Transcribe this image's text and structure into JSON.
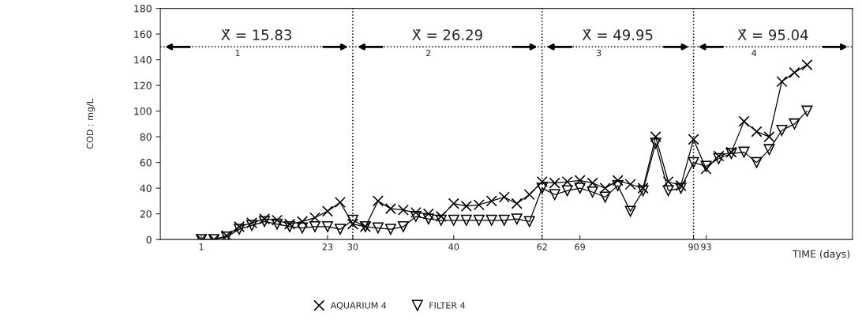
{
  "chart_data": {
    "type": "line",
    "xlabel": "TIME (days)",
    "ylabel": "COD : mg/L",
    "categories": [
      "1",
      null,
      null,
      null,
      null,
      null,
      null,
      null,
      null,
      null,
      "23",
      null,
      "30",
      null,
      null,
      null,
      null,
      null,
      null,
      null,
      "40",
      null,
      null,
      null,
      null,
      null,
      null,
      "62",
      null,
      null,
      "69",
      null,
      null,
      null,
      null,
      null,
      null,
      null,
      null,
      "90",
      "93",
      null,
      null,
      null,
      null,
      null,
      null,
      null,
      null
    ],
    "series": [
      {
        "name": "AQUARIUM 4",
        "color": "#000000",
        "marker": "cross",
        "values": [
          0,
          0,
          3,
          10,
          13,
          16,
          15,
          12,
          14,
          17,
          22,
          29,
          12,
          10,
          30,
          24,
          23,
          21,
          20,
          18,
          28,
          26,
          27,
          30,
          33,
          28,
          35,
          45,
          44,
          45,
          46,
          44,
          40,
          46,
          43,
          40,
          80,
          45,
          42,
          78,
          55,
          65,
          68,
          92,
          84,
          80,
          123,
          130,
          136
        ]
      },
      {
        "name": "FILTER 4",
        "color": "#000000",
        "marker": "triangle",
        "values": [
          0,
          0,
          2,
          8,
          11,
          14,
          12,
          10,
          9,
          10,
          10,
          8,
          15,
          10,
          9,
          8,
          10,
          18,
          16,
          15,
          15,
          15,
          15,
          15,
          15,
          16,
          14,
          40,
          35,
          38,
          40,
          37,
          33,
          42,
          22,
          38,
          75,
          38,
          40,
          60,
          57,
          63,
          67,
          68,
          60,
          70,
          85,
          90,
          100
        ]
      }
    ],
    "ylim": [
      0,
      180
    ],
    "yticks": [
      0,
      20,
      40,
      60,
      80,
      100,
      120,
      140,
      160,
      180
    ],
    "ref_lines": [
      {
        "axis": "x",
        "value": "30",
        "line_style": "dotted"
      },
      {
        "axis": "x",
        "value": "62",
        "line_style": "dotted"
      },
      {
        "axis": "x",
        "value": "90",
        "line_style": "dotted"
      },
      {
        "axis": "y",
        "value": 150,
        "line_style": "dotted"
      }
    ],
    "annotations": [
      {
        "text": "X̄ = 15.83",
        "y": 150
      },
      {
        "text": "1",
        "y": 150
      },
      {
        "text": "X̄ = 26.29",
        "y": 150
      },
      {
        "text": "2",
        "y": 150
      },
      {
        "text": "X̄ = 49.95",
        "y": 150
      },
      {
        "text": "3",
        "y": 150
      },
      {
        "text": "X̄ = 95.04",
        "y": 150
      },
      {
        "text": "4",
        "y": 150
      }
    ],
    "legend": "bottom",
    "grid": false,
    "line_style": "solid"
  }
}
